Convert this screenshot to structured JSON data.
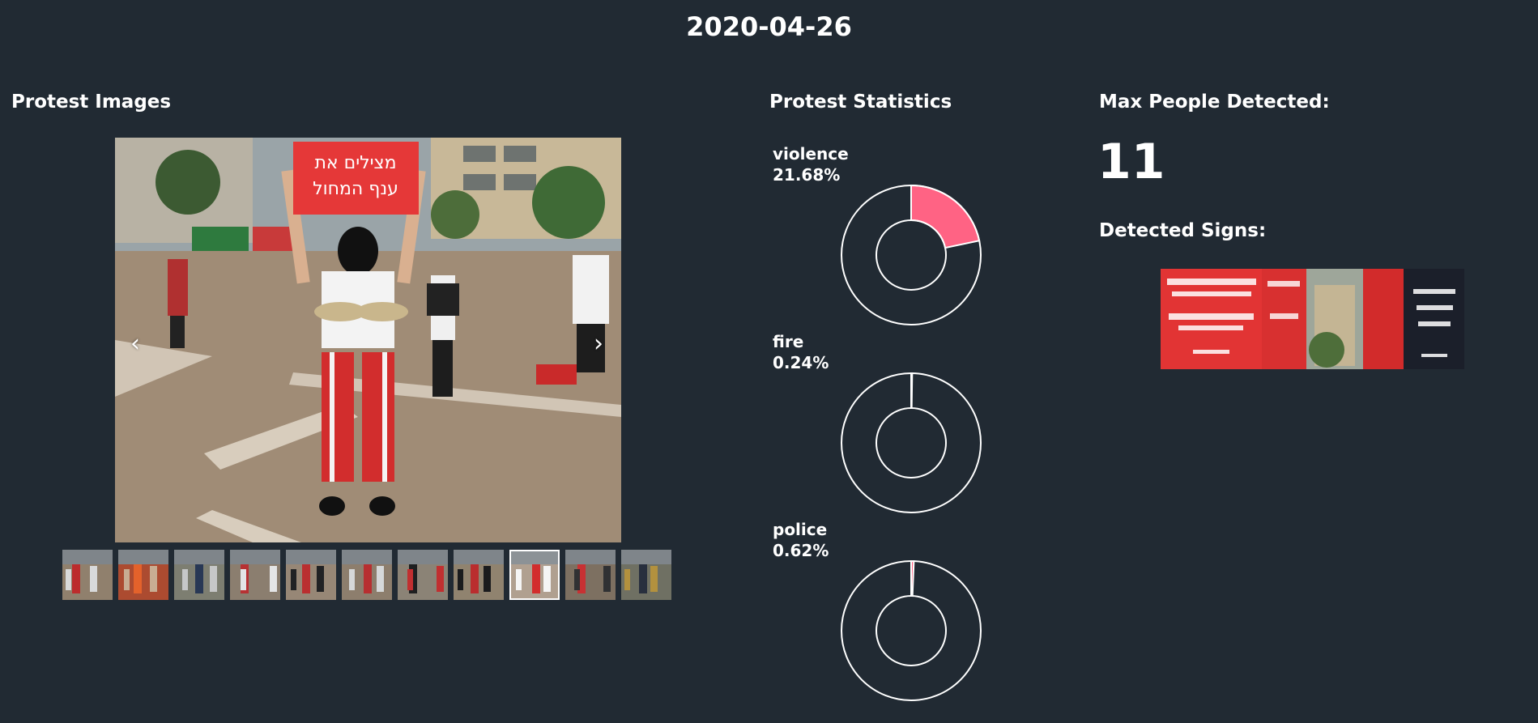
{
  "header": {
    "date": "2020-04-26"
  },
  "images_section": {
    "title": "Protest Images",
    "prev_label": "‹",
    "next_label": "›",
    "sign_text_top": "מצילים את",
    "sign_text_bottom": "ענף המחול",
    "thumbnails": [
      {
        "id": "t1",
        "active": false
      },
      {
        "id": "t2",
        "active": false
      },
      {
        "id": "t3",
        "active": false
      },
      {
        "id": "t4",
        "active": false
      },
      {
        "id": "t5",
        "active": false
      },
      {
        "id": "t6",
        "active": false
      },
      {
        "id": "t7",
        "active": false
      },
      {
        "id": "t8",
        "active": false
      },
      {
        "id": "t9",
        "active": true
      },
      {
        "id": "t10",
        "active": false
      },
      {
        "id": "t11",
        "active": false
      }
    ]
  },
  "stats_section": {
    "title": "Protest Statistics",
    "items": [
      {
        "label": "violence",
        "percent_text": "21.68%",
        "value": 21.68
      },
      {
        "label": "fire",
        "percent_text": "0.24%",
        "value": 0.24
      },
      {
        "label": "police",
        "percent_text": "0.62%",
        "value": 0.62
      }
    ],
    "fill_color": "#ff6384",
    "ring_color": "#ffffff"
  },
  "max_section": {
    "title": "Max People Detected:",
    "count": "11"
  },
  "signs_section": {
    "title": "Detected Signs:"
  }
}
